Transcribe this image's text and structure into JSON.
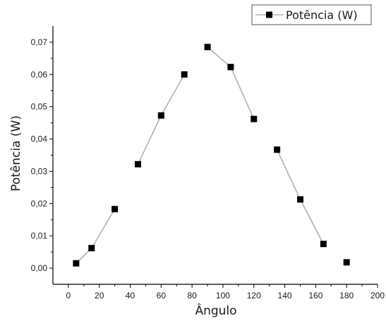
{
  "chart_data": {
    "type": "line",
    "title": "",
    "xlabel": "Ângulo",
    "ylabel": "Potência (W)",
    "xlim": [
      -10,
      200
    ],
    "ylim": [
      -0.005,
      0.075
    ],
    "xticks": [
      0,
      20,
      40,
      60,
      80,
      100,
      120,
      140,
      160,
      180,
      200
    ],
    "yticks": [
      "0,00",
      "0,01",
      "0,02",
      "0,03",
      "0,04",
      "0,05",
      "0,06",
      "0,07"
    ],
    "grid": false,
    "legend_position": "top-right",
    "marker": "square",
    "series": [
      {
        "name": "Potência (W)",
        "color": "#000000",
        "line_color": "#b0b0b0",
        "x": [
          5,
          15,
          30,
          45,
          60,
          75,
          90,
          105,
          120,
          135,
          150,
          165,
          180
        ],
        "y": [
          0.0015,
          0.0062,
          0.0183,
          0.0322,
          0.0473,
          0.06,
          0.0685,
          0.0623,
          0.0462,
          0.0367,
          0.0213,
          0.0075,
          0.0018
        ],
        "segments": [
          [
            0,
            2
          ],
          [
            3,
            5
          ],
          [
            6,
            8
          ],
          [
            9,
            11
          ]
        ]
      }
    ]
  }
}
